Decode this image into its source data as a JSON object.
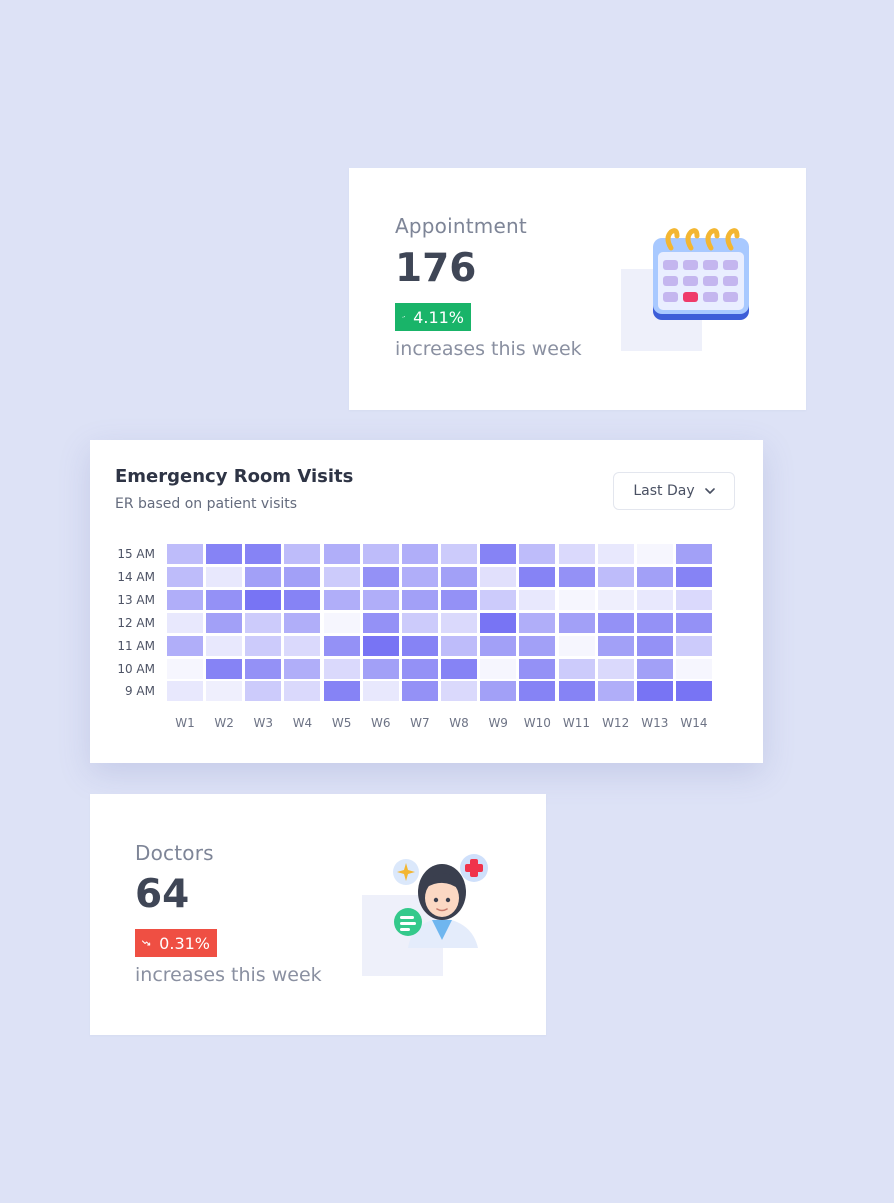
{
  "appointment": {
    "label": "Appointment",
    "value": "176",
    "change": "4.11%",
    "trend": "up",
    "note": "increases this week",
    "icon": "calendar-icon"
  },
  "er": {
    "title": "Emergency Room Visits",
    "subtitle": "ER based on patient visits",
    "dropdown": {
      "selected": "Last Day",
      "icon": "chevron-down-icon"
    }
  },
  "doctors": {
    "label": "Doctors",
    "value": "64",
    "change": "0.31%",
    "trend": "down",
    "note": "increases this week",
    "icon": "doctor-icon"
  },
  "colors": {
    "background": "#dde2f6",
    "positive": "#19b469",
    "negative": "#ef4f43",
    "heatmap_high": "#6a66f3"
  },
  "chart_data": {
    "type": "heatmap",
    "title": "Emergency Room Visits",
    "subtitle": "ER based on patient visits",
    "x": [
      "W1",
      "W2",
      "W3",
      "W4",
      "W5",
      "W6",
      "W7",
      "W8",
      "W9",
      "W10",
      "W11",
      "W12",
      "W13",
      "W14"
    ],
    "y": [
      "15 AM",
      "14 AM",
      "13 AM",
      "12 AM",
      "11 AM",
      "10 AM",
      "9 AM"
    ],
    "values": [
      [
        0.4,
        0.8,
        0.8,
        0.4,
        0.5,
        0.4,
        0.5,
        0.3,
        0.8,
        0.4,
        0.2,
        0.1,
        0.0,
        0.6
      ],
      [
        0.4,
        0.1,
        0.6,
        0.6,
        0.3,
        0.7,
        0.5,
        0.6,
        0.15,
        0.8,
        0.7,
        0.4,
        0.6,
        0.8
      ],
      [
        0.5,
        0.7,
        0.9,
        0.8,
        0.5,
        0.5,
        0.6,
        0.7,
        0.3,
        0.1,
        0.0,
        0.05,
        0.1,
        0.2
      ],
      [
        0.1,
        0.6,
        0.3,
        0.5,
        0.0,
        0.7,
        0.3,
        0.2,
        0.9,
        0.5,
        0.6,
        0.7,
        0.7,
        0.7
      ],
      [
        0.5,
        0.1,
        0.3,
        0.2,
        0.7,
        0.9,
        0.8,
        0.4,
        0.6,
        0.6,
        0.0,
        0.6,
        0.7,
        0.3
      ],
      [
        0.0,
        0.8,
        0.7,
        0.5,
        0.2,
        0.6,
        0.7,
        0.8,
        0.0,
        0.7,
        0.3,
        0.2,
        0.6,
        0.0
      ],
      [
        0.1,
        0.05,
        0.3,
        0.2,
        0.8,
        0.1,
        0.7,
        0.2,
        0.6,
        0.8,
        0.8,
        0.5,
        0.9,
        0.9
      ]
    ],
    "value_scale": "relative intensity 0-1",
    "grid": false,
    "legend": "none"
  }
}
